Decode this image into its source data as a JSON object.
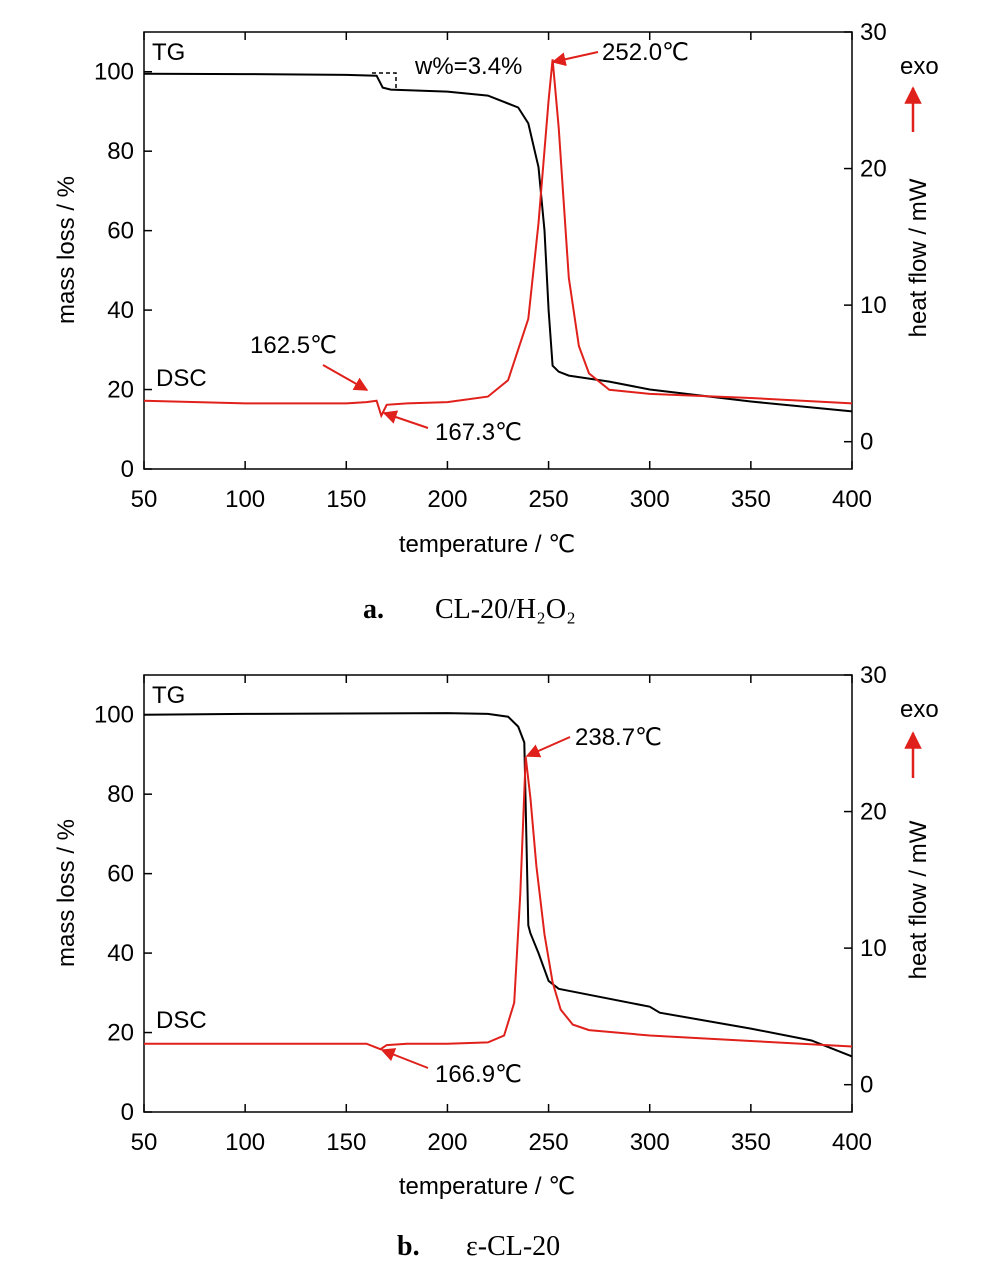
{
  "chart_data": [
    {
      "type": "line",
      "caption_letter": "a.",
      "caption_text": "CL-20/H₂O₂",
      "xlabel": "temperature / ℃",
      "ylabel": "mass loss / %",
      "y2label": "heat flow / mW",
      "xlim": [
        50,
        400
      ],
      "ylim": [
        0,
        110
      ],
      "y2lim": [
        -2,
        30
      ],
      "x_ticks": [
        50,
        100,
        150,
        200,
        250,
        300,
        350,
        400
      ],
      "y_ticks": [
        0,
        20,
        40,
        60,
        80,
        100
      ],
      "y2_ticks": [
        0,
        10,
        20,
        30
      ],
      "exo_label": "exo",
      "series": [
        {
          "name": "TG",
          "axis": "left",
          "color": "#000000",
          "x": [
            50,
            100,
            150,
            165,
            168,
            172,
            200,
            220,
            235,
            240,
            245,
            248,
            250,
            252,
            255,
            260,
            280,
            300,
            350,
            400
          ],
          "y": [
            99.5,
            99.4,
            99.2,
            99.0,
            96.0,
            95.5,
            95.0,
            94.0,
            91.0,
            87.0,
            76.0,
            60.0,
            40.0,
            26.0,
            24.5,
            23.5,
            22.0,
            20.0,
            17.0,
            14.5
          ]
        },
        {
          "name": "DSC",
          "axis": "right",
          "color": "#e0201b",
          "x": [
            50,
            100,
            150,
            160,
            165,
            167.3,
            170,
            180,
            200,
            220,
            230,
            240,
            245,
            250,
            252,
            255,
            260,
            265,
            270,
            280,
            300,
            350,
            400
          ],
          "y": [
            3.0,
            2.8,
            2.8,
            2.9,
            3.0,
            1.9,
            2.7,
            2.8,
            2.9,
            3.3,
            4.5,
            9.0,
            16.0,
            25.0,
            28.0,
            23.0,
            12.0,
            7.0,
            5.0,
            3.8,
            3.5,
            3.2,
            2.8
          ]
        }
      ],
      "series_labels": [
        "TG",
        "DSC"
      ],
      "annotations": [
        {
          "text": "w%=3.4%"
        },
        {
          "text": "252.0℃"
        },
        {
          "text": "162.5℃"
        },
        {
          "text": "167.3℃"
        }
      ]
    },
    {
      "type": "line",
      "caption_letter": "b.",
      "caption_text": "ε-CL-20",
      "xlabel": "temperature / ℃",
      "ylabel": "mass loss / %",
      "y2label": "heat flow / mW",
      "xlim": [
        50,
        400
      ],
      "ylim": [
        0,
        110
      ],
      "y2lim": [
        -2,
        30
      ],
      "x_ticks": [
        50,
        100,
        150,
        200,
        250,
        300,
        350,
        400
      ],
      "y_ticks": [
        0,
        20,
        40,
        60,
        80,
        100
      ],
      "y2_ticks": [
        0,
        10,
        20,
        30
      ],
      "exo_label": "exo",
      "series": [
        {
          "name": "TG",
          "axis": "left",
          "color": "#000000",
          "x": [
            50,
            100,
            150,
            200,
            220,
            230,
            235,
            238,
            239,
            240,
            241,
            245,
            250,
            255,
            260,
            300,
            305,
            350,
            380,
            400
          ],
          "y": [
            100.0,
            100.2,
            100.3,
            100.4,
            100.2,
            99.5,
            97.0,
            93.0,
            70.0,
            47.0,
            45.0,
            40.0,
            33.0,
            31.0,
            30.5,
            26.5,
            25.0,
            21.0,
            18.0,
            14.0
          ]
        },
        {
          "name": "DSC",
          "axis": "right",
          "color": "#e0201b",
          "x": [
            50,
            100,
            150,
            160,
            166.9,
            170,
            180,
            200,
            220,
            228,
            233,
            236,
            238.7,
            241,
            244,
            248,
            252,
            256,
            262,
            270,
            300,
            350,
            400
          ],
          "y": [
            3.0,
            3.0,
            3.0,
            3.0,
            2.6,
            2.9,
            3.0,
            3.0,
            3.1,
            3.6,
            6.0,
            14.0,
            24.0,
            21.0,
            16.0,
            11.0,
            7.5,
            5.5,
            4.4,
            4.0,
            3.6,
            3.2,
            2.8
          ]
        }
      ],
      "series_labels": [
        "TG",
        "DSC"
      ],
      "annotations": [
        {
          "text": "238.7℃"
        },
        {
          "text": "166.9℃"
        }
      ]
    }
  ]
}
